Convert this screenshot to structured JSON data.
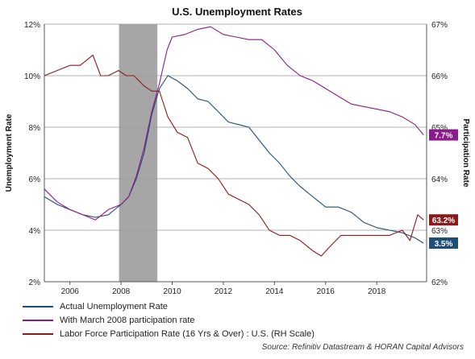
{
  "chart_data": {
    "type": "line",
    "title": "U.S. Unemployment Rates",
    "ylabel_left": "Unemployment Rate",
    "ylabel_right": "Participation Rate",
    "xlim": [
      2005,
      2019.95
    ],
    "ylim_left": [
      2,
      12
    ],
    "ylim_right": [
      62,
      67
    ],
    "x_ticks": [
      2006,
      2008,
      2010,
      2012,
      2014,
      2016,
      2018
    ],
    "y_ticks_left": [
      2,
      4,
      6,
      8,
      10,
      12
    ],
    "y_ticks_left_labels": [
      "2%",
      "4%",
      "6%",
      "8%",
      "10%",
      "12%"
    ],
    "y_ticks_right": [
      62,
      63,
      64,
      65,
      66,
      67
    ],
    "y_ticks_right_labels": [
      "62%",
      "63%",
      "64%",
      "65%",
      "66%",
      "67%"
    ],
    "recession_band": [
      2007.92,
      2009.42
    ],
    "grid": "horizontal",
    "series": [
      {
        "name": "Actual Unemployment Rate",
        "axis": "left",
        "color": "#1f4e79",
        "x": [
          2005.0,
          2005.5,
          2006.0,
          2006.5,
          2007.0,
          2007.5,
          2008.0,
          2008.3,
          2008.6,
          2008.9,
          2009.2,
          2009.5,
          2009.83,
          2010.2,
          2010.6,
          2011.0,
          2011.4,
          2011.8,
          2012.2,
          2012.6,
          2013.0,
          2013.4,
          2013.8,
          2014.2,
          2014.6,
          2015.0,
          2015.5,
          2016.0,
          2016.5,
          2017.0,
          2017.5,
          2018.0,
          2018.5,
          2019.0,
          2019.5,
          2019.83
        ],
        "values": [
          5.3,
          5.0,
          4.8,
          4.6,
          4.5,
          4.6,
          5.0,
          5.3,
          6.0,
          7.0,
          8.5,
          9.5,
          10.0,
          9.8,
          9.5,
          9.1,
          9.0,
          8.6,
          8.2,
          8.1,
          8.0,
          7.5,
          7.0,
          6.6,
          6.1,
          5.7,
          5.3,
          4.9,
          4.9,
          4.7,
          4.3,
          4.1,
          4.0,
          3.9,
          3.7,
          3.5
        ],
        "end_label": "3.5%"
      },
      {
        "name": "With March 2008 participation rate",
        "axis": "left",
        "color": "#8b1a8b",
        "x": [
          2005.0,
          2005.5,
          2006.0,
          2006.5,
          2007.0,
          2007.5,
          2008.0,
          2008.3,
          2008.6,
          2008.9,
          2009.2,
          2009.5,
          2009.8,
          2010.0,
          2010.5,
          2011.0,
          2011.5,
          2012.0,
          2012.5,
          2013.0,
          2013.5,
          2014.0,
          2014.5,
          2015.0,
          2015.5,
          2016.0,
          2016.5,
          2017.0,
          2017.5,
          2018.0,
          2018.5,
          2019.0,
          2019.5,
          2019.83
        ],
        "values": [
          5.6,
          5.1,
          4.8,
          4.6,
          4.4,
          4.8,
          5.0,
          5.3,
          6.1,
          7.2,
          8.6,
          9.7,
          11.0,
          11.5,
          11.6,
          11.8,
          11.9,
          11.6,
          11.5,
          11.4,
          11.4,
          11.0,
          10.4,
          10.0,
          9.8,
          9.5,
          9.2,
          8.9,
          8.8,
          8.7,
          8.6,
          8.4,
          8.1,
          7.7
        ],
        "end_label": "7.7%"
      },
      {
        "name": "Labor Force Participation Rate (16 Yrs & Over) : U.S. (RH Scale)",
        "axis": "right",
        "color": "#8b1a1a",
        "x": [
          2005.0,
          2005.5,
          2006.0,
          2006.4,
          2006.9,
          2007.2,
          2007.5,
          2007.9,
          2008.2,
          2008.5,
          2008.9,
          2009.2,
          2009.5,
          2009.83,
          2010.2,
          2010.6,
          2011.0,
          2011.4,
          2011.8,
          2012.2,
          2012.6,
          2013.0,
          2013.4,
          2013.8,
          2014.2,
          2014.6,
          2015.0,
          2015.5,
          2015.83,
          2016.2,
          2016.6,
          2017.0,
          2017.5,
          2018.0,
          2018.5,
          2019.0,
          2019.3,
          2019.6,
          2019.83
        ],
        "values": [
          66.0,
          66.1,
          66.2,
          66.2,
          66.4,
          66.0,
          66.0,
          66.1,
          66.0,
          66.0,
          65.8,
          65.7,
          65.7,
          65.2,
          64.9,
          64.8,
          64.3,
          64.2,
          64.0,
          63.7,
          63.6,
          63.5,
          63.3,
          63.0,
          62.9,
          62.9,
          62.8,
          62.6,
          62.5,
          62.7,
          62.9,
          62.9,
          62.9,
          62.9,
          62.9,
          63.0,
          62.8,
          63.3,
          63.2
        ],
        "end_label": "63.2%"
      }
    ],
    "legend": [
      {
        "label": "Actual Unemployment Rate",
        "color": "#1f4e79"
      },
      {
        "label": "With March 2008 participation rate",
        "color": "#8b1a8b"
      },
      {
        "label": "Labor Force Participation Rate (16 Yrs & Over) : U.S. (RH Scale)",
        "color": "#8b1a1a"
      }
    ],
    "legend_placement": "bottom-left",
    "source": "Source: Refinitiv Datastream & HORAN Capital Advisors"
  }
}
